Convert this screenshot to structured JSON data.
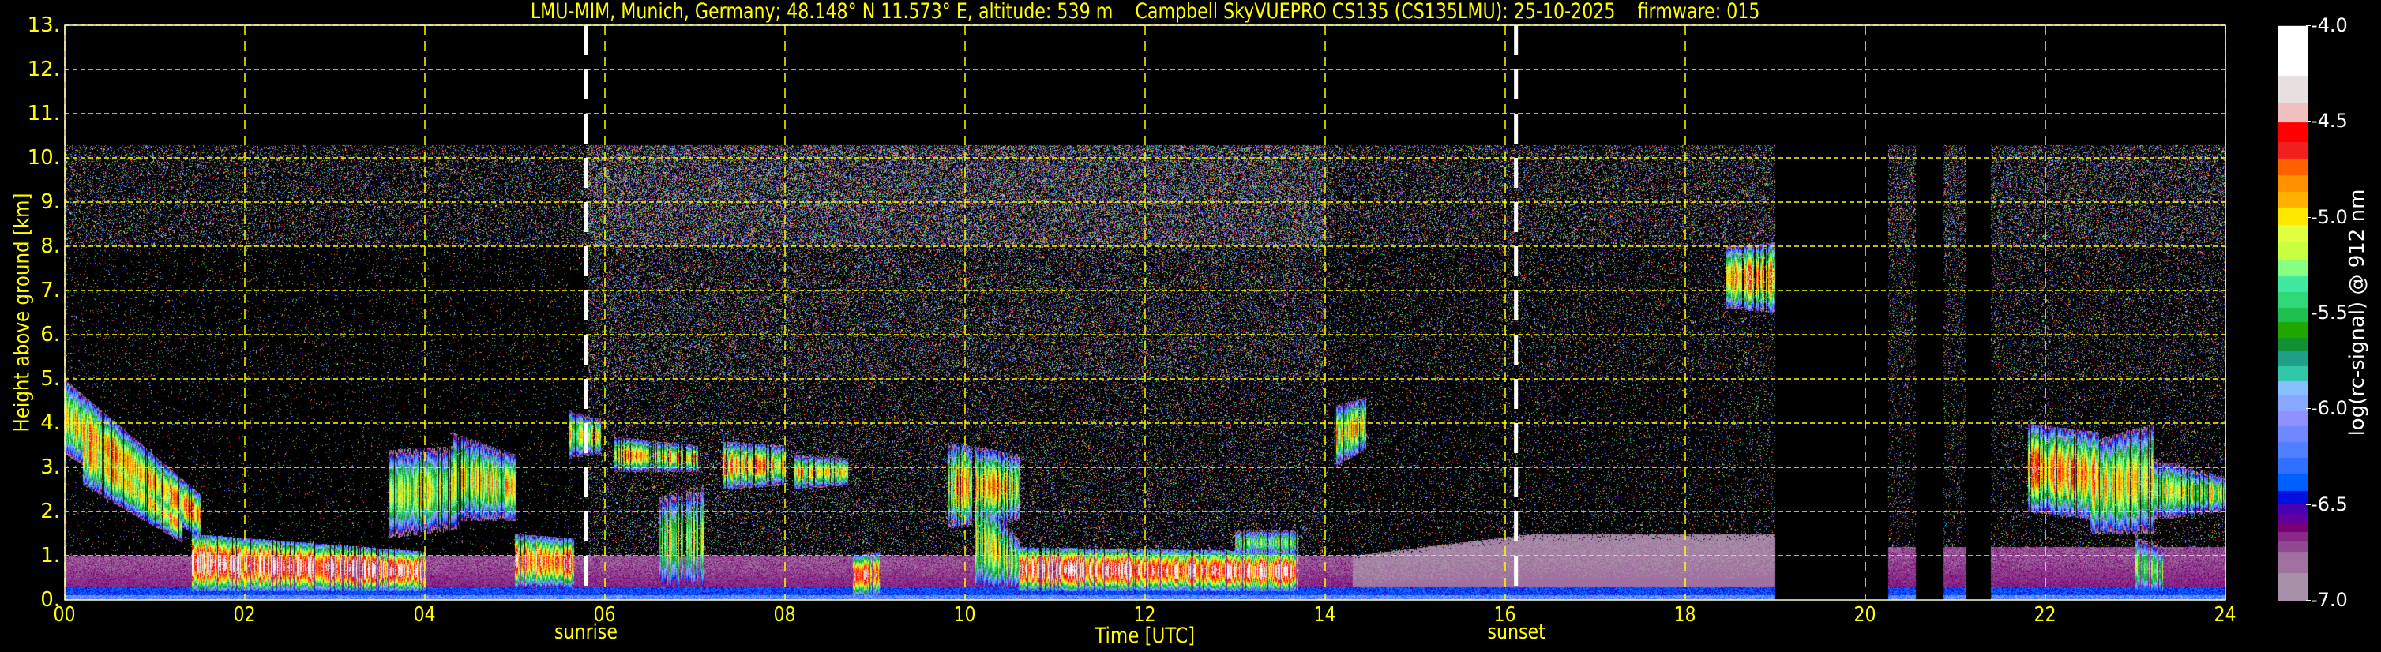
{
  "chart_data": {
    "type": "heatmap",
    "title": "LMU-MIM, Munich, Germany; 48.148° N 11.573° E, altitude: 539 m    Campbell SkyVUEPRO CS135 (CS135LMU): 25-10-2025    firmware: 015",
    "xlabel": "Time [UTC]",
    "ylabel": "Height above ground [km]",
    "xlim": [
      0,
      24
    ],
    "ylim": [
      0,
      13
    ],
    "xticks": [
      {
        "value": 0,
        "label": "00"
      },
      {
        "value": 2,
        "label": "02"
      },
      {
        "value": 4,
        "label": "04"
      },
      {
        "value": 6,
        "label": "06"
      },
      {
        "value": 8,
        "label": "08"
      },
      {
        "value": 10,
        "label": "10"
      },
      {
        "value": 12,
        "label": "12"
      },
      {
        "value": 14,
        "label": "14"
      },
      {
        "value": 16,
        "label": "16"
      },
      {
        "value": 18,
        "label": "18"
      },
      {
        "value": 20,
        "label": "20"
      },
      {
        "value": 22,
        "label": "22"
      },
      {
        "value": 24,
        "label": "24"
      }
    ],
    "yticks": [
      {
        "value": 0,
        "label": "0."
      },
      {
        "value": 1,
        "label": "1."
      },
      {
        "value": 2,
        "label": "2."
      },
      {
        "value": 3,
        "label": "3."
      },
      {
        "value": 4,
        "label": "4."
      },
      {
        "value": 5,
        "label": "5."
      },
      {
        "value": 6,
        "label": "6."
      },
      {
        "value": 7,
        "label": "7."
      },
      {
        "value": 8,
        "label": "8."
      },
      {
        "value": 9,
        "label": "9."
      },
      {
        "value": 10,
        "label": "10."
      },
      {
        "value": 11,
        "label": "11."
      },
      {
        "value": 12,
        "label": "12."
      },
      {
        "value": 13,
        "label": "13."
      }
    ],
    "grid": true,
    "grid_color": "#ffff00",
    "text_color": "#ffff00",
    "background": "#000000",
    "annotations": [
      {
        "label": "sunrise",
        "time": 5.79,
        "style": "white dashed vertical line"
      },
      {
        "label": "sunset",
        "time": 16.12,
        "style": "white dashed vertical line"
      }
    ],
    "data_gaps": [
      [
        19.0,
        20.25
      ],
      [
        20.56,
        20.86
      ],
      [
        21.12,
        21.39
      ]
    ],
    "signal_top_km": 10.3,
    "colorbar": {
      "label": "log(rc-signal) @ 912 nm",
      "range": [
        -7.0,
        -4.0
      ],
      "ticks": [
        {
          "value": -4.0,
          "label": "-4.0"
        },
        {
          "value": -4.5,
          "label": "-4.5"
        },
        {
          "value": -5.0,
          "label": "-5.0"
        },
        {
          "value": -5.5,
          "label": "-5.5"
        },
        {
          "value": -6.0,
          "label": "-6.0"
        },
        {
          "value": -6.5,
          "label": "-6.5"
        },
        {
          "value": -7.0,
          "label": "-7.0"
        }
      ],
      "bands": [
        {
          "from": -7.0,
          "color": "#a890a8"
        },
        {
          "from": -6.855,
          "color": "#a070a0"
        },
        {
          "from": -6.744,
          "color": "#904890"
        },
        {
          "from": -6.69,
          "color": "#882888"
        },
        {
          "from": -6.638,
          "color": "#780070"
        },
        {
          "from": -6.588,
          "color": "#6000a0"
        },
        {
          "from": -6.545,
          "color": "#4800b0"
        },
        {
          "from": -6.491,
          "color": "#0010e0"
        },
        {
          "from": -6.426,
          "color": "#0060ff"
        },
        {
          "from": -6.333,
          "color": "#3070ff"
        },
        {
          "from": -6.253,
          "color": "#5080ff"
        },
        {
          "from": -6.17,
          "color": "#7088ff"
        },
        {
          "from": -6.086,
          "color": "#9090ff"
        },
        {
          "from": -6.01,
          "color": "#88a8ff"
        },
        {
          "from": -5.928,
          "color": "#88c0ff"
        },
        {
          "from": -5.852,
          "color": "#30c8a8"
        },
        {
          "from": -5.772,
          "color": "#20a088"
        },
        {
          "from": -5.694,
          "color": "#109030"
        },
        {
          "from": -5.625,
          "color": "#20a800"
        },
        {
          "from": -5.544,
          "color": "#20c050"
        },
        {
          "from": -5.469,
          "color": "#30d878"
        },
        {
          "from": -5.386,
          "color": "#40e8a0"
        },
        {
          "from": -5.306,
          "color": "#88ff80"
        },
        {
          "from": -5.217,
          "color": "#c8ff40"
        },
        {
          "from": -5.126,
          "color": "#e0ff40"
        },
        {
          "from": -5.035,
          "color": "#ffe800"
        },
        {
          "from": -4.946,
          "color": "#ffb000"
        },
        {
          "from": -4.862,
          "color": "#ff9000"
        },
        {
          "from": -4.775,
          "color": "#ff6000"
        },
        {
          "from": -4.689,
          "color": "#f02020"
        },
        {
          "from": -4.602,
          "color": "#ff0000"
        },
        {
          "from": -4.5,
          "color": "#f0c0c0"
        },
        {
          "from": -4.396,
          "color": "#e8e0e0"
        },
        {
          "from": -4.256,
          "color": "#ffffff"
        }
      ]
    },
    "features": [
      {
        "t": [
          0.0,
          1.5
        ],
        "base": [
          3.3,
          1.4
        ],
        "top": [
          5.0,
          2.4
        ],
        "peak": -4.7
      },
      {
        "t": [
          0.2,
          1.3
        ],
        "base": [
          2.6,
          1.3
        ],
        "top": [
          4.2,
          2.0
        ],
        "peak": -4.8
      },
      {
        "t": [
          1.4,
          4.0
        ],
        "base": [
          0.2,
          0.2
        ],
        "top": [
          1.5,
          1.1
        ],
        "peak": -4.25
      },
      {
        "t": [
          3.6,
          4.4
        ],
        "base": [
          1.4,
          1.6
        ],
        "top": [
          3.4,
          3.5
        ],
        "peak": -5.0
      },
      {
        "t": [
          4.3,
          5.0
        ],
        "base": [
          1.8,
          1.8
        ],
        "top": [
          3.8,
          3.3
        ],
        "peak": -4.9
      },
      {
        "t": [
          5.0,
          5.65
        ],
        "base": [
          0.3,
          0.3
        ],
        "top": [
          1.5,
          1.4
        ],
        "peak": -4.4
      },
      {
        "t": [
          5.6,
          5.95
        ],
        "base": [
          3.2,
          3.3
        ],
        "top": [
          4.3,
          4.1
        ],
        "peak": -4.9
      },
      {
        "t": [
          6.1,
          7.05
        ],
        "base": [
          2.9,
          2.9
        ],
        "top": [
          3.7,
          3.5
        ],
        "peak": -4.8
      },
      {
        "t": [
          6.6,
          7.1
        ],
        "base": [
          0.2,
          0.2
        ],
        "top": [
          2.4,
          2.6
        ],
        "peak": -5.1
      },
      {
        "t": [
          7.3,
          8.0
        ],
        "base": [
          2.5,
          2.6
        ],
        "top": [
          3.6,
          3.5
        ],
        "peak": -4.7
      },
      {
        "t": [
          8.1,
          8.7
        ],
        "base": [
          2.5,
          2.6
        ],
        "top": [
          3.3,
          3.2
        ],
        "peak": -4.8
      },
      {
        "t": [
          8.75,
          9.05
        ],
        "base": [
          0.1,
          0.1
        ],
        "top": [
          1.0,
          1.1
        ],
        "peak": -4.4
      },
      {
        "t": [
          9.8,
          10.6
        ],
        "base": [
          1.6,
          1.8
        ],
        "top": [
          3.6,
          3.3
        ],
        "peak": -4.8
      },
      {
        "t": [
          10.1,
          10.6
        ],
        "base": [
          0.2,
          0.2
        ],
        "top": [
          2.6,
          1.4
        ],
        "peak": -5.0
      },
      {
        "t": [
          10.6,
          13.7
        ],
        "base": [
          0.2,
          0.2
        ],
        "top": [
          1.2,
          1.1
        ],
        "peak": -4.3
      },
      {
        "t": [
          13.0,
          13.7
        ],
        "base": [
          1.0,
          1.0
        ],
        "top": [
          1.6,
          1.6
        ],
        "peak": -5.3
      },
      {
        "t": [
          14.1,
          14.45
        ],
        "base": [
          3.0,
          3.4
        ],
        "top": [
          4.4,
          4.6
        ],
        "peak": -4.8
      },
      {
        "t": [
          18.45,
          19.0
        ],
        "base": [
          6.6,
          6.5
        ],
        "top": [
          8.0,
          8.1
        ],
        "peak": -4.6
      },
      {
        "t": [
          21.8,
          22.6
        ],
        "base": [
          2.0,
          1.8
        ],
        "top": [
          4.0,
          3.8
        ],
        "peak": -4.6
      },
      {
        "t": [
          22.5,
          23.2
        ],
        "base": [
          1.5,
          1.5
        ],
        "top": [
          3.6,
          4.0
        ],
        "peak": -4.8
      },
      {
        "t": [
          23.2,
          24.0
        ],
        "base": [
          1.8,
          2.0
        ],
        "top": [
          3.2,
          2.8
        ],
        "peak": -5.0
      },
      {
        "t": [
          23.0,
          23.3
        ],
        "base": [
          0.1,
          0.1
        ],
        "top": [
          1.5,
          1.2
        ],
        "peak": -5.1
      }
    ]
  }
}
